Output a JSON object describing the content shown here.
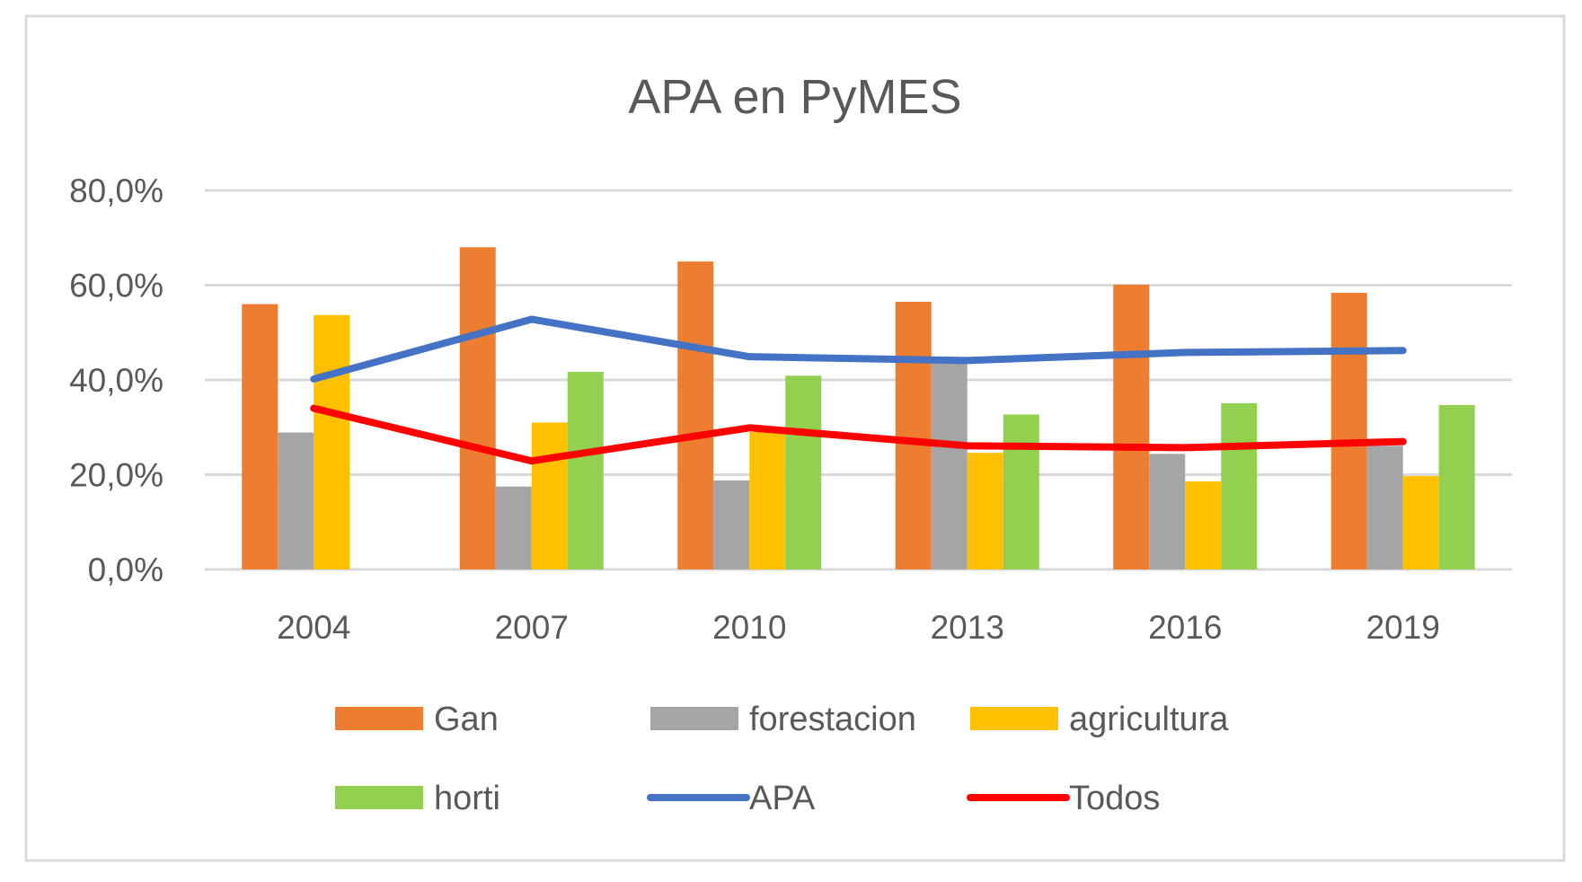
{
  "chart_data": {
    "type": "bar",
    "title": "APA en PyMES",
    "xlabel": "",
    "ylabel": "",
    "categories": [
      "2004",
      "2007",
      "2010",
      "2013",
      "2016",
      "2019"
    ],
    "ylim": [
      0,
      80
    ],
    "yticks": [
      "0,0%",
      "20,0%",
      "40,0%",
      "60,0%",
      "80,0%"
    ],
    "grid": true,
    "legend_position": "bottom",
    "series": [
      {
        "name": "Gan",
        "kind": "bar",
        "color": "#ED7D31",
        "values": [
          56.0,
          68.0,
          65.0,
          56.5,
          60.1,
          58.4
        ]
      },
      {
        "name": "forestacion",
        "kind": "bar",
        "color": "#A5A5A5",
        "values": [
          28.9,
          17.5,
          18.8,
          43.6,
          24.4,
          26.1
        ]
      },
      {
        "name": "agricultura",
        "kind": "bar",
        "color": "#FFC000",
        "values": [
          53.7,
          31.0,
          29.0,
          24.6,
          18.6,
          19.7
        ]
      },
      {
        "name": "horti",
        "kind": "bar",
        "color": "#92D050",
        "values": [
          null,
          41.7,
          40.9,
          32.7,
          35.1,
          34.7
        ]
      },
      {
        "name": "APA",
        "kind": "line",
        "color": "#4472C4",
        "values": [
          40.2,
          52.8,
          44.9,
          44.1,
          45.8,
          46.2
        ]
      },
      {
        "name": "Todos",
        "kind": "line",
        "color": "#FF0000",
        "values": [
          34.0,
          22.9,
          29.9,
          26.1,
          25.7,
          27.0
        ]
      }
    ]
  }
}
